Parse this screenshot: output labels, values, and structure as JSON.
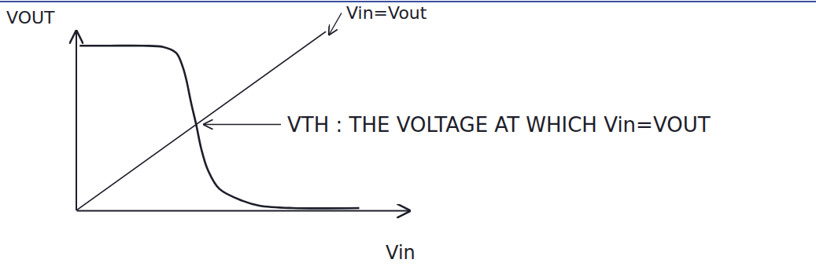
{
  "chart_data": {
    "type": "line",
    "x_label": "Vin",
    "y_label": "VOUT",
    "annotations": [
      "Vin=Vout",
      "VTH : THE VOLTAGE AT WHICH Vin=VOUT"
    ],
    "xlim": [
      0,
      10
    ],
    "ylim": [
      0,
      7.5
    ],
    "tick_labels": false,
    "grid": false,
    "series": [
      {
        "color": "#1e1e2a",
        "line_style": "solid",
        "x": [
          0.1,
          1,
          2,
          2.6,
          3.0,
          3.2,
          3.3,
          3.45,
          3.6,
          3.75,
          3.95,
          4.3,
          5,
          5.5,
          6.5,
          8.5
        ],
        "values": [
          6.9,
          6.9,
          6.9,
          6.85,
          6.6,
          6.0,
          5.5,
          4.5,
          3.6,
          2.6,
          1.7,
          0.9,
          0.4,
          0.2,
          0.1,
          0.1
        ]
      },
      {
        "color": "#1e1e2a",
        "line_style": "solid",
        "x": [
          0,
          7.5
        ],
        "values": [
          0,
          7.5
        ]
      }
    ]
  }
}
